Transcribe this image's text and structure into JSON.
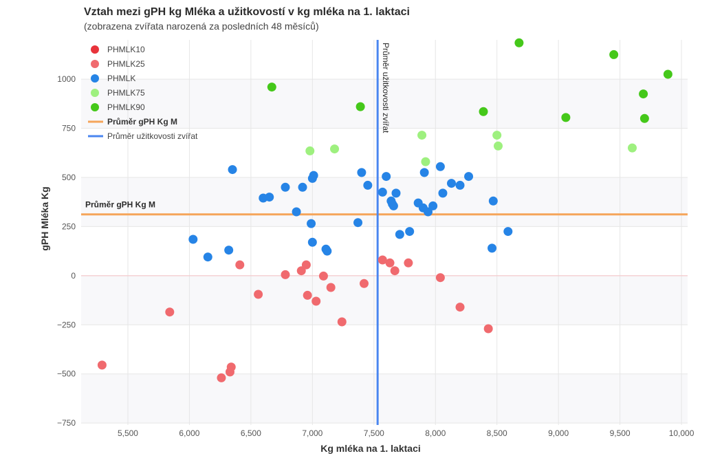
{
  "title": "Vztah mezi gPH kg Mléka a užitkovostí v kg mléka na 1. laktaci",
  "subtitle": "(zobrazena zvířata narozená za posledních 48 měsíců)",
  "chart_data": {
    "type": "scatter",
    "xlabel": "Kg mléka na 1. laktaci",
    "ylabel": "gPH Mléka Kg",
    "xlim": [
      5120,
      10050
    ],
    "ylim": [
      -760,
      1200
    ],
    "xticks": [
      5500,
      6000,
      6500,
      7000,
      7500,
      8000,
      8500,
      9000,
      9500,
      10000
    ],
    "xtick_labels": [
      "5,500",
      "6,000",
      "6,500",
      "7,000",
      "7,500",
      "8,000",
      "8,500",
      "9,000",
      "9,500",
      "10,000"
    ],
    "yticks": [
      -750,
      -500,
      -250,
      0,
      250,
      500,
      750,
      1000
    ],
    "ytick_labels": [
      "−750",
      "−500",
      "−250",
      "0",
      "250",
      "500",
      "750",
      "1000"
    ],
    "grid": true,
    "legend_position": "top-left",
    "series": [
      {
        "name": "PHMLK10",
        "color": "#e8333b",
        "points": []
      },
      {
        "name": "PHMLK25",
        "color": "#f06a6e",
        "points": [
          [
            5290,
            -455
          ],
          [
            5840,
            -185
          ],
          [
            6260,
            -520
          ],
          [
            6330,
            -490
          ],
          [
            6340,
            -465
          ],
          [
            6410,
            55
          ],
          [
            6560,
            -95
          ],
          [
            6780,
            5
          ],
          [
            6910,
            25
          ],
          [
            6950,
            55
          ],
          [
            6960,
            -100
          ],
          [
            7030,
            -130
          ],
          [
            7090,
            -2
          ],
          [
            7150,
            -60
          ],
          [
            7240,
            -235
          ],
          [
            7420,
            -40
          ],
          [
            7570,
            80
          ],
          [
            7630,
            65
          ],
          [
            7670,
            25
          ],
          [
            7780,
            65
          ],
          [
            8040,
            -10
          ],
          [
            8200,
            -160
          ],
          [
            8430,
            -270
          ]
        ]
      },
      {
        "name": "PHMLK",
        "color": "#2684e6",
        "points": [
          [
            6030,
            185
          ],
          [
            6150,
            95
          ],
          [
            6320,
            130
          ],
          [
            6350,
            540
          ],
          [
            6600,
            395
          ],
          [
            6650,
            400
          ],
          [
            6780,
            450
          ],
          [
            6870,
            325
          ],
          [
            6920,
            450
          ],
          [
            6990,
            265
          ],
          [
            7000,
            495
          ],
          [
            7010,
            510
          ],
          [
            7000,
            170
          ],
          [
            7110,
            135
          ],
          [
            7120,
            125
          ],
          [
            7370,
            270
          ],
          [
            7400,
            525
          ],
          [
            7450,
            460
          ],
          [
            7570,
            425
          ],
          [
            7600,
            505
          ],
          [
            7640,
            380
          ],
          [
            7650,
            365
          ],
          [
            7660,
            355
          ],
          [
            7680,
            420
          ],
          [
            7710,
            210
          ],
          [
            7790,
            225
          ],
          [
            7860,
            370
          ],
          [
            7900,
            345
          ],
          [
            7910,
            525
          ],
          [
            7940,
            325
          ],
          [
            7980,
            355
          ],
          [
            8040,
            555
          ],
          [
            8060,
            420
          ],
          [
            8130,
            470
          ],
          [
            8200,
            460
          ],
          [
            8270,
            505
          ],
          [
            8460,
            140
          ],
          [
            8470,
            380
          ],
          [
            8590,
            225
          ]
        ]
      },
      {
        "name": "PHMLK75",
        "color": "#9ef07f",
        "points": [
          [
            6980,
            635
          ],
          [
            7180,
            645
          ],
          [
            7890,
            715
          ],
          [
            7920,
            580
          ],
          [
            8500,
            715
          ],
          [
            8510,
            660
          ],
          [
            9600,
            650
          ]
        ]
      },
      {
        "name": "PHMLK90",
        "color": "#45c81a",
        "points": [
          [
            6670,
            960
          ],
          [
            7390,
            860
          ],
          [
            8390,
            835
          ],
          [
            8680,
            1185
          ],
          [
            9060,
            805
          ],
          [
            9450,
            1125
          ],
          [
            9690,
            925
          ],
          [
            9700,
            800
          ],
          [
            9890,
            1025
          ]
        ]
      }
    ],
    "reference_lines": [
      {
        "name": "Průměr gPH Kg M",
        "orientation": "horizontal",
        "value": 312,
        "color": "#f5a55a",
        "label": "Průměr gPH Kg M"
      },
      {
        "name": "Průměr užitkovosti zvířat",
        "orientation": "vertical",
        "value": 7530,
        "color": "#4a86f0",
        "label": "Průměr užitkovosti zvířat"
      }
    ]
  }
}
